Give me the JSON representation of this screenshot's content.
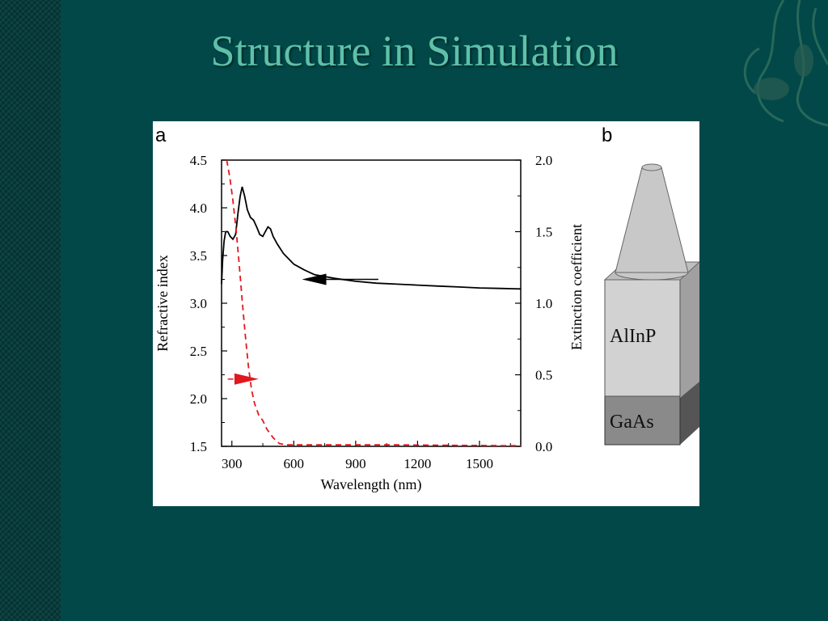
{
  "slide": {
    "title": "Structure in Simulation",
    "background_color": "#024848",
    "title_color": "#5fc0a8"
  },
  "panels": {
    "a_label": "a",
    "b_label": "b"
  },
  "chart_data": {
    "type": "line",
    "xlabel": "Wavelength (nm)",
    "ylabel_left": "Refractive index",
    "ylabel_right": "Extinction coefficient",
    "xlim": [
      250,
      1700
    ],
    "ylim_left": [
      1.5,
      4.5
    ],
    "ylim_right": [
      0.0,
      2.0
    ],
    "x_ticks": [
      300,
      600,
      900,
      1200,
      1500
    ],
    "x_tick_labels": [
      "300",
      "600",
      "900",
      "1200",
      "1500"
    ],
    "y_left_ticks": [
      1.5,
      2.0,
      2.5,
      3.0,
      3.5,
      4.0,
      4.5
    ],
    "y_left_tick_labels": [
      "1.5",
      "2.0",
      "2.5",
      "3.0",
      "3.5",
      "4.0",
      "4.5"
    ],
    "y_right_ticks": [
      0.0,
      0.5,
      1.0,
      1.5,
      2.0
    ],
    "y_right_tick_labels": [
      "0.0",
      "0.5",
      "1.0",
      "1.5",
      "2.0"
    ],
    "series": [
      {
        "axis": "left",
        "color": "#000000",
        "style": "solid",
        "x": [
          250,
          255,
          262,
          270,
          280,
          292,
          305,
          318,
          330,
          340,
          350,
          362,
          375,
          390,
          405,
          420,
          435,
          450,
          462,
          475,
          487,
          500,
          520,
          550,
          600,
          650,
          700,
          750,
          800,
          900,
          1000,
          1100,
          1200,
          1300,
          1400,
          1500,
          1600,
          1700
        ],
        "y": [
          3.2,
          3.45,
          3.65,
          3.75,
          3.75,
          3.7,
          3.67,
          3.72,
          3.95,
          4.12,
          4.22,
          4.12,
          3.98,
          3.9,
          3.87,
          3.8,
          3.72,
          3.7,
          3.75,
          3.8,
          3.78,
          3.7,
          3.62,
          3.52,
          3.41,
          3.35,
          3.3,
          3.28,
          3.26,
          3.23,
          3.21,
          3.2,
          3.19,
          3.18,
          3.17,
          3.16,
          3.155,
          3.15
        ]
      },
      {
        "axis": "right",
        "color": "#e0191e",
        "style": "dashed",
        "x": [
          275,
          290,
          305,
          320,
          335,
          350,
          365,
          380,
          395,
          410,
          430,
          450,
          470,
          500,
          530,
          560,
          600,
          700,
          800,
          900,
          1000,
          1100,
          1200,
          1300,
          1400,
          1500,
          1600,
          1700
        ],
        "y": [
          2.0,
          1.88,
          1.72,
          1.52,
          1.28,
          1.02,
          0.78,
          0.56,
          0.4,
          0.3,
          0.22,
          0.18,
          0.12,
          0.06,
          0.02,
          0.01,
          0.01,
          0.01,
          0.01,
          0.01,
          0.01,
          0.01,
          0.009,
          0.008,
          0.007,
          0.006,
          0.005,
          0.005
        ]
      }
    ],
    "annotations": [
      {
        "kind": "arrow",
        "color": "#000000",
        "axis": "left",
        "direction": "left",
        "x_from": 1010,
        "x_to": 640,
        "y": 3.25
      },
      {
        "kind": "arrow",
        "color": "#e0191e",
        "axis": "right",
        "direction": "right",
        "x_from": 280,
        "x_to": 430,
        "y": 0.47
      }
    ]
  },
  "structure": {
    "labels": {
      "upper_block": "AlInP",
      "lower_block": "GaAs"
    },
    "colors": {
      "cone": "#c8c8c8",
      "upper_front": "#d2d2d2",
      "upper_side": "#a0a0a0",
      "upper_top": "#bebebe",
      "lower_front": "#8a8a8a",
      "lower_side": "#555555"
    }
  }
}
